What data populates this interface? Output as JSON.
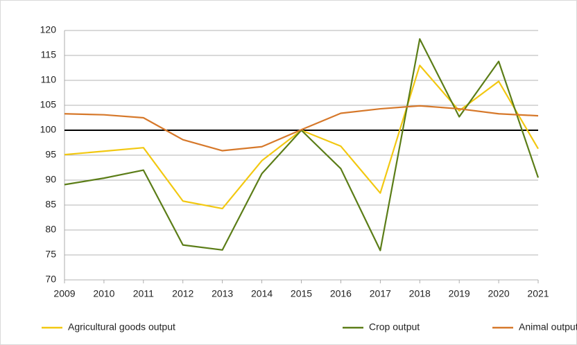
{
  "chart_data": {
    "type": "line",
    "categories": [
      "2009",
      "2010",
      "2011",
      "2012",
      "2013",
      "2014",
      "2015",
      "2016",
      "2017",
      "2018",
      "2019",
      "2020",
      "2021"
    ],
    "series": [
      {
        "name": "Agricultural goods output",
        "color": "#f2c811",
        "values": [
          95.1,
          95.8,
          96.5,
          85.8,
          84.3,
          93.9,
          100,
          96.8,
          87.4,
          113,
          103.9,
          109.8,
          96.3
        ]
      },
      {
        "name": "Crop output",
        "color": "#5b7d17",
        "values": [
          89.1,
          90.4,
          92,
          77,
          76,
          91.3,
          100,
          92.3,
          75.9,
          118.3,
          102.7,
          113.8,
          90.5
        ]
      },
      {
        "name": "Animal output",
        "color": "#d6782a",
        "values": [
          103.3,
          103.1,
          102.5,
          98.1,
          95.9,
          96.7,
          100.1,
          103.4,
          104.3,
          104.9,
          104.3,
          103.3,
          102.9
        ]
      }
    ],
    "ylim": [
      70,
      120
    ],
    "yticks": [
      70,
      75,
      80,
      85,
      90,
      95,
      100,
      105,
      110,
      115,
      120
    ],
    "reference_line": 100,
    "grid": true,
    "legend": "bottom"
  }
}
